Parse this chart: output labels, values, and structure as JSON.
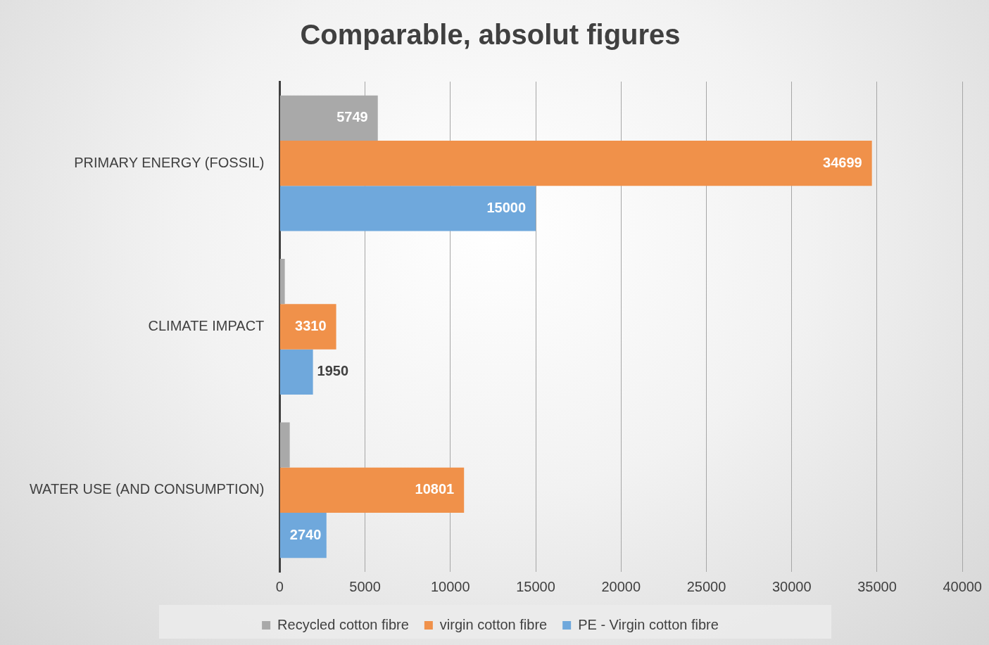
{
  "chart_data": {
    "type": "bar",
    "orientation": "horizontal",
    "title": "Comparable, absolut figures",
    "categories": [
      "PRIMARY ENERGY (FOSSIL)",
      "CLIMATE IMPACT",
      "WATER USE (AND CONSUMPTION)"
    ],
    "series": [
      {
        "name": "Recycled cotton fibre",
        "color": "#a9a9a9",
        "values": [
          5749,
          300,
          590
        ],
        "value_labels": [
          "5749",
          null,
          null
        ]
      },
      {
        "name": "virgin cotton fibre",
        "color": "#f0914a",
        "values": [
          34699,
          3310,
          10801
        ],
        "value_labels": [
          "34699",
          "3310",
          "10801"
        ]
      },
      {
        "name": "PE - Virgin cotton fibre",
        "color": "#6fa8dc",
        "values": [
          15000,
          1950,
          2740
        ],
        "value_labels": [
          "15000",
          "1950",
          "2740"
        ]
      }
    ],
    "xlim": [
      0,
      40000
    ],
    "xticks": [
      0,
      5000,
      10000,
      15000,
      20000,
      25000,
      30000,
      35000,
      40000
    ],
    "grid": "x",
    "legend": "bottom"
  }
}
